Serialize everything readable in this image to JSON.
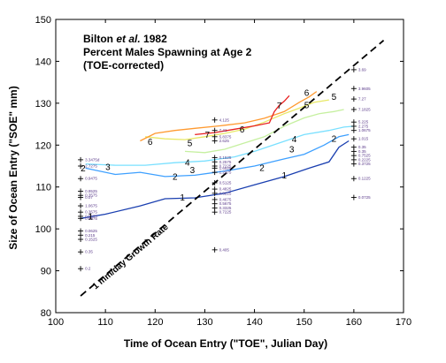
{
  "chart_data": {
    "type": "contour",
    "title": {
      "author": "Bilton",
      "etal": "et al.",
      "year": "1982",
      "line2": "Percent Males Spawning at Age 2",
      "line3": "(TOE-corrected)"
    },
    "xlabel": "Time of Ocean Entry (\"TOE\", Julian Day)",
    "ylabel": "Size of Ocean Entry (\"SOE\" mm)",
    "xlim": [
      100,
      170
    ],
    "ylim": [
      80,
      150
    ],
    "xticks": [
      100,
      110,
      120,
      130,
      140,
      150,
      160,
      170
    ],
    "yticks": [
      80,
      90,
      100,
      110,
      120,
      130,
      140,
      150
    ],
    "growth_line": {
      "label": "1 mm/day Growth Rate",
      "points": [
        [
          105,
          84
        ],
        [
          166,
          145
        ]
      ]
    },
    "contours": [
      {
        "level": "1",
        "color": "#1a3fb0",
        "points": [
          [
            105,
            102.5
          ],
          [
            110,
            103.5
          ],
          [
            117,
            105.5
          ],
          [
            122,
            107.2
          ],
          [
            128,
            107.4
          ],
          [
            134,
            108.5
          ],
          [
            140,
            110.5
          ],
          [
            146,
            112.5
          ],
          [
            151,
            114.5
          ],
          [
            155,
            116
          ],
          [
            157,
            119.5
          ],
          [
            159,
            121
          ]
        ],
        "labels": [
          [
            107,
            103
          ],
          [
            125.5,
            107.5
          ],
          [
            146,
            112.8
          ]
        ]
      },
      {
        "level": "2",
        "color": "#3ea0ff",
        "points": [
          [
            106,
            114.5
          ],
          [
            112,
            113
          ],
          [
            117,
            113.5
          ],
          [
            122,
            112.5
          ],
          [
            128,
            112.8
          ],
          [
            134,
            113.8
          ],
          [
            140,
            115
          ],
          [
            146,
            116.7
          ],
          [
            150,
            117.8
          ],
          [
            154,
            120
          ],
          [
            157,
            122
          ],
          [
            159,
            122.5
          ]
        ],
        "labels": [
          [
            105.5,
            114.5
          ],
          [
            124,
            112.5
          ],
          [
            141.5,
            114.6
          ],
          [
            156,
            121.5
          ]
        ]
      },
      {
        "level": "3",
        "color": "#7ae0ff",
        "points": [
          [
            106,
            115.5
          ],
          [
            112,
            115.2
          ],
          [
            118,
            115.2
          ],
          [
            124,
            115.8
          ],
          [
            130,
            116.2
          ],
          [
            136,
            117.2
          ],
          [
            140,
            118.5
          ],
          [
            145,
            120.5
          ],
          [
            150,
            122.5
          ],
          [
            155,
            123.5
          ],
          [
            158,
            124.3
          ],
          [
            160,
            124.5
          ]
        ],
        "labels": [
          [
            110.5,
            114.8
          ],
          [
            127.5,
            114
          ],
          [
            147.5,
            119
          ]
        ]
      },
      {
        "level": "4",
        "color": "#c6f0a0",
        "points": [
          [
            126,
            118.5
          ],
          [
            130,
            118.2
          ],
          [
            134,
            119
          ],
          [
            138,
            120.5
          ],
          [
            142,
            122
          ],
          [
            146,
            124.5
          ],
          [
            150,
            126.5
          ],
          [
            153,
            127.5
          ],
          [
            156,
            128
          ],
          [
            158,
            128.5
          ]
        ],
        "labels": [
          [
            126.5,
            115.8
          ],
          [
            148,
            121.4
          ]
        ]
      },
      {
        "level": "5",
        "color": "#e8e866",
        "points": [
          [
            118,
            122
          ],
          [
            122,
            121.5
          ],
          [
            126,
            121.3
          ],
          [
            130,
            122
          ],
          [
            134,
            122.8
          ],
          [
            138,
            123.8
          ],
          [
            142,
            125.5
          ],
          [
            146,
            127.5
          ],
          [
            149,
            128.8
          ],
          [
            152,
            130.2
          ],
          [
            155,
            130.8
          ]
        ],
        "labels": [
          [
            127,
            120.5
          ],
          [
            150.5,
            129.6
          ],
          [
            156,
            131.5
          ]
        ]
      },
      {
        "level": "6",
        "color": "#ff9a30",
        "points": [
          [
            117,
            121
          ],
          [
            120,
            122.8
          ],
          [
            124,
            123.5
          ],
          [
            128,
            124
          ],
          [
            133,
            124.6
          ],
          [
            138,
            125.3
          ],
          [
            142,
            126.4
          ],
          [
            146,
            128
          ],
          [
            149,
            130.2
          ],
          [
            151,
            131.5
          ],
          [
            152.5,
            132.8
          ]
        ],
        "labels": [
          [
            119,
            120.8
          ],
          [
            137.5,
            123.8
          ],
          [
            150.5,
            132.5
          ]
        ]
      },
      {
        "level": "7",
        "color": "#e82020",
        "points": [
          [
            128,
            122.5
          ],
          [
            132,
            123
          ],
          [
            136,
            123.8
          ],
          [
            140,
            124.6
          ],
          [
            143,
            125.3
          ],
          [
            144,
            128
          ],
          [
            145,
            129.5
          ],
          [
            146,
            130.5
          ],
          [
            147,
            131.8
          ]
        ],
        "labels": [
          [
            130.5,
            122.5
          ],
          [
            145,
            129.4
          ]
        ]
      }
    ],
    "sample_points": {
      "x105": [
        {
          "y": 116.5,
          "label": "3.3475d"
        },
        {
          "y": 115,
          "label": "2.7275"
        },
        {
          "y": 112,
          "label": "0.9475"
        },
        {
          "y": 109,
          "label": "0.9525"
        },
        {
          "y": 108,
          "label": "0.3575"
        },
        {
          "y": 107.5,
          "label": "0.07"
        },
        {
          "y": 105.5,
          "label": "1.0675"
        },
        {
          "y": 104,
          "label": "0.3575"
        },
        {
          "y": 103,
          "label": "0.6575"
        },
        {
          "y": 102.5,
          "label": "0.8875"
        },
        {
          "y": 99.5,
          "label": "0.0625"
        },
        {
          "y": 98.5,
          "label": "0.215"
        },
        {
          "y": 97.5,
          "label": "0.1525"
        },
        {
          "y": 94.5,
          "label": "0.35"
        },
        {
          "y": 90.5,
          "label": "0.2"
        }
      ],
      "x132": [
        {
          "y": 126,
          "label": "4.125"
        },
        {
          "y": 123.5,
          "label": "7.41"
        },
        {
          "y": 122,
          "label": "5.8375"
        },
        {
          "y": 121,
          "label": "2.625"
        },
        {
          "y": 117,
          "label": "0.1525"
        },
        {
          "y": 116,
          "label": "0.2575"
        },
        {
          "y": 115,
          "label": "0.7225"
        },
        {
          "y": 114.5,
          "label": "1.6525"
        },
        {
          "y": 113.5,
          "label": "1.2375"
        },
        {
          "y": 111,
          "label": "0.5125"
        },
        {
          "y": 109.5,
          "label": "0.4825"
        },
        {
          "y": 108.5,
          "label": "0.8225"
        },
        {
          "y": 107,
          "label": "0.4675"
        },
        {
          "y": 106,
          "label": "0.5675"
        },
        {
          "y": 105,
          "label": "0.3325"
        },
        {
          "y": 104,
          "label": "0.7225"
        },
        {
          "y": 95,
          "label": "0.405"
        }
      ],
      "x160": [
        {
          "y": 138,
          "label": "3.69"
        },
        {
          "y": 133.5,
          "label": "3.9605"
        },
        {
          "y": 131,
          "label": "7.27"
        },
        {
          "y": 128.5,
          "label": "7.1825"
        },
        {
          "y": 125.5,
          "label": "5.225"
        },
        {
          "y": 124.5,
          "label": "2.275"
        },
        {
          "y": 123.5,
          "label": "1.0675"
        },
        {
          "y": 121.5,
          "label": "1.015"
        },
        {
          "y": 119.5,
          "label": "0.35"
        },
        {
          "y": 118.5,
          "label": "0.35"
        },
        {
          "y": 117.5,
          "label": "0.7525"
        },
        {
          "y": 116.5,
          "label": "0.2225"
        },
        {
          "y": 115.5,
          "label": "0.3725"
        },
        {
          "y": 112,
          "label": "0.1225"
        },
        {
          "y": 107.5,
          "label": "0.0725"
        }
      ]
    }
  }
}
